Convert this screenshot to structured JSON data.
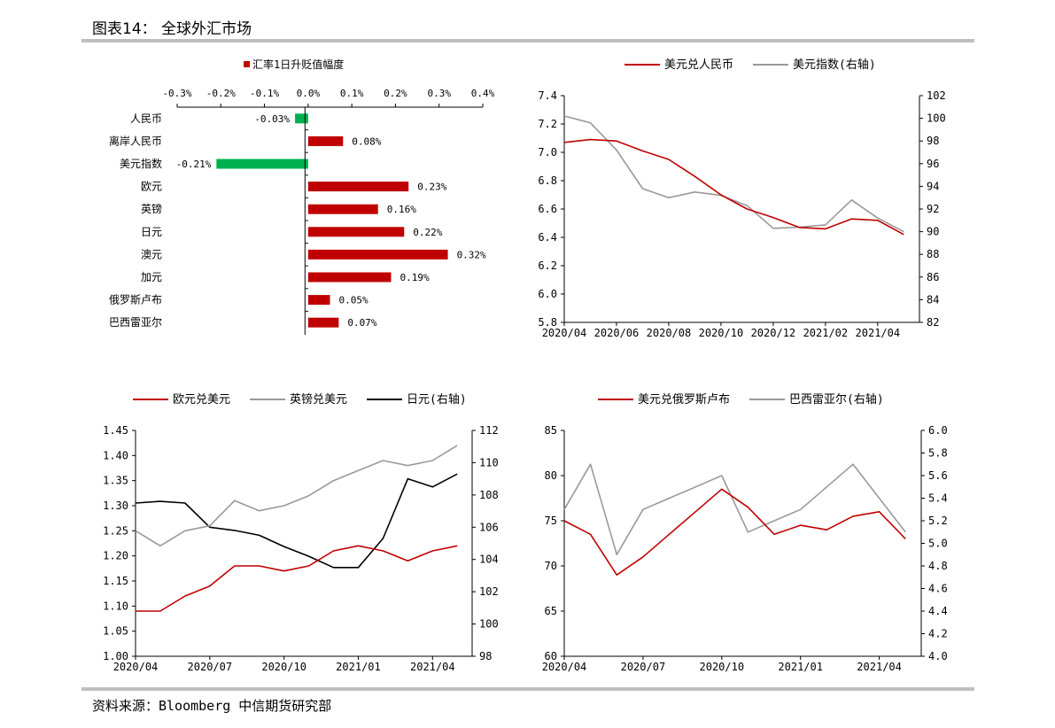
{
  "page": {
    "title": "图表14： 全球外汇市场",
    "source": "资料来源：Bloomberg 中信期货研究部"
  },
  "chart_data": [
    {
      "type": "bar",
      "orientation": "horizontal",
      "legend": [
        "汇率1日升贬值幅度"
      ],
      "categories": [
        "人民币",
        "离岸人民币",
        "美元指数",
        "欧元",
        "英镑",
        "日元",
        "澳元",
        "加元",
        "俄罗斯卢布",
        "巴西雷亚尔"
      ],
      "values": [
        -0.03,
        0.08,
        -0.21,
        0.23,
        0.16,
        0.22,
        0.32,
        0.19,
        0.05,
        0.07
      ],
      "value_labels": [
        "-0.03%",
        "0.08%",
        "-0.21%",
        "0.23%",
        "0.16%",
        "0.22%",
        "0.32%",
        "0.19%",
        "0.05%",
        "0.07%"
      ],
      "xlim": [
        -0.3,
        0.4
      ],
      "xticks": [
        "-0.3%",
        "-0.2%",
        "-0.1%",
        "0.0%",
        "0.1%",
        "0.2%",
        "0.3%",
        "0.4%"
      ],
      "colors": {
        "positive": "#c00000",
        "negative": "#00b050"
      }
    },
    {
      "type": "line",
      "x_ticks": [
        "2020/04",
        "2020/06",
        "2020/08",
        "2020/10",
        "2020/12",
        "2021/02",
        "2021/04"
      ],
      "left_ylim": [
        5.8,
        7.4
      ],
      "left_ticks": [
        "5.8",
        "6.0",
        "6.2",
        "6.4",
        "6.6",
        "6.8",
        "7.0",
        "7.2",
        "7.4"
      ],
      "right_ylim": [
        82,
        102
      ],
      "right_ticks": [
        "82",
        "84",
        "86",
        "88",
        "90",
        "92",
        "94",
        "96",
        "98",
        "100",
        "102"
      ],
      "series": [
        {
          "name": "美元兑人民币",
          "axis": "left",
          "color": "#c00000",
          "x": [
            "2020/04",
            "2020/05",
            "2020/06",
            "2020/07",
            "2020/08",
            "2020/09",
            "2020/10",
            "2020/11",
            "2020/12",
            "2021/01",
            "2021/02",
            "2021/03",
            "2021/04",
            "2021/05"
          ],
          "values": [
            7.07,
            7.09,
            7.08,
            7.01,
            6.95,
            6.83,
            6.7,
            6.6,
            6.54,
            6.47,
            6.46,
            6.53,
            6.52,
            6.42
          ]
        },
        {
          "name": "美元指数(右轴)",
          "axis": "right",
          "color": "#999999",
          "x": [
            "2020/04",
            "2020/05",
            "2020/06",
            "2020/07",
            "2020/08",
            "2020/09",
            "2020/10",
            "2020/11",
            "2020/12",
            "2021/01",
            "2021/02",
            "2021/03",
            "2021/04",
            "2021/05"
          ],
          "values": [
            100.2,
            99.6,
            97.2,
            93.8,
            93.0,
            93.5,
            93.2,
            92.3,
            90.3,
            90.4,
            90.6,
            92.8,
            91.2,
            90.0
          ]
        }
      ]
    },
    {
      "type": "line",
      "x_ticks": [
        "2020/04",
        "2020/07",
        "2020/10",
        "2021/01",
        "2021/04"
      ],
      "left_ylim": [
        1.0,
        1.45
      ],
      "left_ticks": [
        "1.00",
        "1.05",
        "1.10",
        "1.15",
        "1.20",
        "1.25",
        "1.30",
        "1.35",
        "1.40",
        "1.45"
      ],
      "right_ylim": [
        98,
        112
      ],
      "right_ticks": [
        "98",
        "100",
        "102",
        "104",
        "106",
        "108",
        "110",
        "112"
      ],
      "series": [
        {
          "name": "欧元兑美元",
          "axis": "left",
          "color": "#c00000",
          "x": [
            "2020/04",
            "2020/05",
            "2020/06",
            "2020/07",
            "2020/08",
            "2020/09",
            "2020/10",
            "2020/11",
            "2020/12",
            "2021/01",
            "2021/02",
            "2021/03",
            "2021/04",
            "2021/05"
          ],
          "values": [
            1.09,
            1.09,
            1.12,
            1.14,
            1.18,
            1.18,
            1.17,
            1.18,
            1.21,
            1.22,
            1.21,
            1.19,
            1.21,
            1.22
          ]
        },
        {
          "name": "英镑兑美元",
          "axis": "left",
          "color": "#999999",
          "x": [
            "2020/04",
            "2020/05",
            "2020/06",
            "2020/07",
            "2020/08",
            "2020/09",
            "2020/10",
            "2020/11",
            "2020/12",
            "2021/01",
            "2021/02",
            "2021/03",
            "2021/04",
            "2021/05"
          ],
          "values": [
            1.25,
            1.22,
            1.25,
            1.26,
            1.31,
            1.29,
            1.3,
            1.32,
            1.35,
            1.37,
            1.39,
            1.38,
            1.39,
            1.42
          ]
        },
        {
          "name": "日元(右轴)",
          "axis": "right",
          "color": "#000000",
          "x": [
            "2020/04",
            "2020/05",
            "2020/06",
            "2020/07",
            "2020/08",
            "2020/09",
            "2020/10",
            "2020/11",
            "2020/12",
            "2021/01",
            "2021/02",
            "2021/03",
            "2021/04",
            "2021/05"
          ],
          "values": [
            107.5,
            107.6,
            107.5,
            106.0,
            105.8,
            105.5,
            104.8,
            104.2,
            103.5,
            103.5,
            105.3,
            109.0,
            108.5,
            109.3
          ]
        }
      ]
    },
    {
      "type": "line",
      "x_ticks": [
        "2020/04",
        "2020/07",
        "2020/10",
        "2021/01",
        "2021/04"
      ],
      "left_ylim": [
        60,
        85
      ],
      "left_ticks": [
        "60",
        "65",
        "70",
        "75",
        "80",
        "85"
      ],
      "right_ylim": [
        4.0,
        6.0
      ],
      "right_ticks": [
        "4.0",
        "4.2",
        "4.4",
        "4.6",
        "4.8",
        "5.0",
        "5.2",
        "5.4",
        "5.6",
        "5.8",
        "6.0"
      ],
      "series": [
        {
          "name": "美元兑俄罗斯卢布",
          "axis": "left",
          "color": "#c00000",
          "x": [
            "2020/04",
            "2020/05",
            "2020/06",
            "2020/07",
            "2020/08",
            "2020/09",
            "2020/10",
            "2020/11",
            "2020/12",
            "2021/01",
            "2021/02",
            "2021/03",
            "2021/04",
            "2021/05"
          ],
          "values": [
            75,
            73.5,
            69.0,
            71.0,
            73.5,
            76.0,
            78.5,
            76.5,
            73.5,
            74.5,
            74.0,
            75.5,
            76.0,
            73.0
          ]
        },
        {
          "name": "巴西雷亚尔(右轴)",
          "axis": "right",
          "color": "#999999",
          "x": [
            "2020/04",
            "2020/05",
            "2020/06",
            "2020/07",
            "2020/08",
            "2020/09",
            "2020/10",
            "2020/11",
            "2020/12",
            "2021/01",
            "2021/02",
            "2021/03",
            "2021/04",
            "2021/05"
          ],
          "values": [
            5.3,
            5.7,
            4.9,
            5.3,
            5.4,
            5.5,
            5.6,
            5.1,
            5.2,
            5.3,
            5.5,
            5.7,
            5.4,
            5.1
          ]
        }
      ]
    }
  ]
}
